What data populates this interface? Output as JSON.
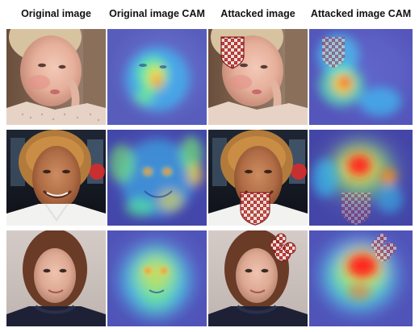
{
  "headers": {
    "original": "Original image",
    "original_cam": "Original image CAM",
    "attacked": "Attacked image",
    "attacked_cam": "Attacked image CAM"
  }
}
